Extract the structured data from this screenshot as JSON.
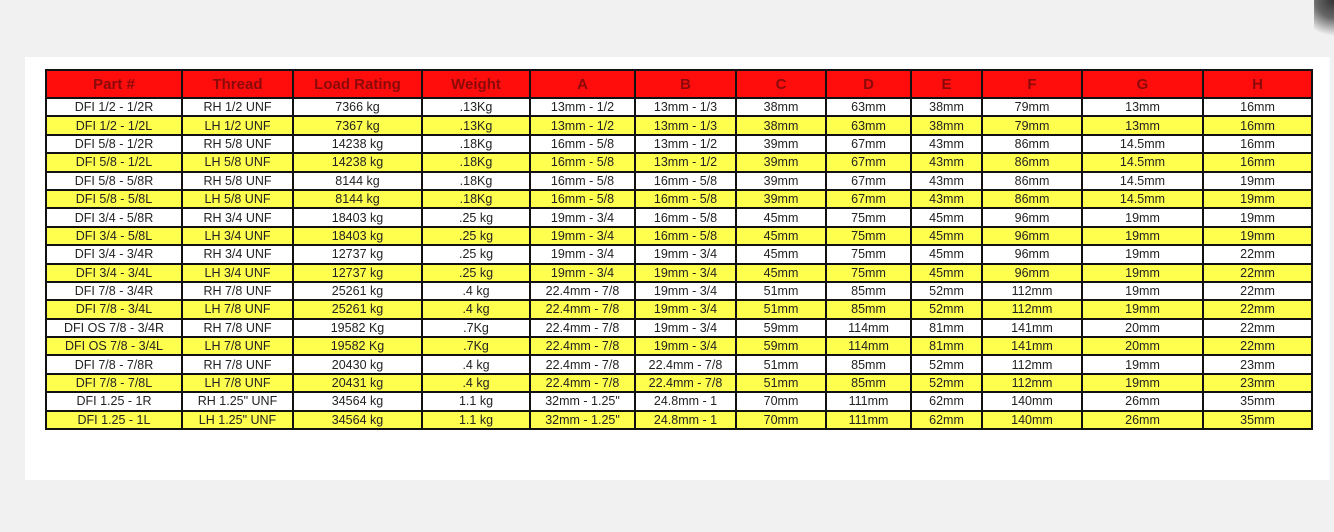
{
  "colors": {
    "header_bg": "#ff0d0d",
    "header_text": "#8a0a0a",
    "alt_row": "#ffff4d",
    "row": "#ffffff"
  },
  "table": {
    "headers": [
      "Part #",
      "Thread",
      "Load Rating",
      "Weight",
      "A",
      "B",
      "C",
      "D",
      "E",
      "F",
      "G",
      "H"
    ],
    "rows": [
      [
        "DFI 1/2 - 1/2R",
        "RH 1/2 UNF",
        "7366 kg",
        ".13Kg",
        "13mm - 1/2",
        "13mm - 1/3",
        "38mm",
        "63mm",
        "38mm",
        "79mm",
        "13mm",
        "16mm"
      ],
      [
        "DFI 1/2 - 1/2L",
        "LH 1/2 UNF",
        "7367 kg",
        ".13Kg",
        "13mm - 1/2",
        "13mm - 1/3",
        "38mm",
        "63mm",
        "38mm",
        "79mm",
        "13mm",
        "16mm"
      ],
      [
        "DFI 5/8 - 1/2R",
        "RH 5/8 UNF",
        "14238 kg",
        ".18Kg",
        "16mm - 5/8",
        "13mm - 1/2",
        "39mm",
        "67mm",
        "43mm",
        "86mm",
        "14.5mm",
        "16mm"
      ],
      [
        "DFI 5/8 - 1/2L",
        "LH 5/8 UNF",
        "14238 kg",
        ".18Kg",
        "16mm - 5/8",
        "13mm - 1/2",
        "39mm",
        "67mm",
        "43mm",
        "86mm",
        "14.5mm",
        "16mm"
      ],
      [
        "DFI 5/8 - 5/8R",
        "RH 5/8 UNF",
        "8144 kg",
        ".18Kg",
        "16mm - 5/8",
        "16mm - 5/8",
        "39mm",
        "67mm",
        "43mm",
        "86mm",
        "14.5mm",
        "19mm"
      ],
      [
        "DFI 5/8 - 5/8L",
        "LH 5/8 UNF",
        "8144 kg",
        ".18Kg",
        "16mm - 5/8",
        "16mm - 5/8",
        "39mm",
        "67mm",
        "43mm",
        "86mm",
        "14.5mm",
        "19mm"
      ],
      [
        "DFI 3/4 - 5/8R",
        "RH 3/4 UNF",
        "18403 kg",
        ".25 kg",
        "19mm - 3/4",
        "16mm - 5/8",
        "45mm",
        "75mm",
        "45mm",
        "96mm",
        "19mm",
        "19mm"
      ],
      [
        "DFI 3/4 - 5/8L",
        "LH 3/4 UNF",
        "18403 kg",
        ".25 kg",
        "19mm - 3/4",
        "16mm - 5/8",
        "45mm",
        "75mm",
        "45mm",
        "96mm",
        "19mm",
        "19mm"
      ],
      [
        "DFI 3/4 - 3/4R",
        "RH 3/4 UNF",
        "12737 kg",
        ".25 kg",
        "19mm - 3/4",
        "19mm - 3/4",
        "45mm",
        "75mm",
        "45mm",
        "96mm",
        "19mm",
        "22mm"
      ],
      [
        "DFI 3/4 - 3/4L",
        "LH 3/4 UNF",
        "12737 kg",
        ".25 kg",
        "19mm - 3/4",
        "19mm - 3/4",
        "45mm",
        "75mm",
        "45mm",
        "96mm",
        "19mm",
        "22mm"
      ],
      [
        "DFI 7/8 - 3/4R",
        "RH 7/8 UNF",
        "25261 kg",
        ".4 kg",
        "22.4mm - 7/8",
        "19mm - 3/4",
        "51mm",
        "85mm",
        "52mm",
        "112mm",
        "19mm",
        "22mm"
      ],
      [
        "DFI 7/8 - 3/4L",
        "LH 7/8 UNF",
        "25261 kg",
        ".4 kg",
        "22.4mm - 7/8",
        "19mm - 3/4",
        "51mm",
        "85mm",
        "52mm",
        "112mm",
        "19mm",
        "22mm"
      ],
      [
        "DFI OS 7/8 - 3/4R",
        "RH 7/8 UNF",
        "19582 Kg",
        ".7Kg",
        "22.4mm - 7/8",
        "19mm - 3/4",
        "59mm",
        "114mm",
        "81mm",
        "141mm",
        "20mm",
        "22mm"
      ],
      [
        "DFI OS 7/8 - 3/4L",
        "LH 7/8 UNF",
        "19582 Kg",
        ".7Kg",
        "22.4mm - 7/8",
        "19mm - 3/4",
        "59mm",
        "114mm",
        "81mm",
        "141mm",
        "20mm",
        "22mm"
      ],
      [
        "DFI 7/8 - 7/8R",
        "RH 7/8 UNF",
        "20430 kg",
        ".4 kg",
        "22.4mm - 7/8",
        "22.4mm - 7/8",
        "51mm",
        "85mm",
        "52mm",
        "112mm",
        "19mm",
        "23mm"
      ],
      [
        "DFI 7/8 - 7/8L",
        "LH 7/8 UNF",
        "20431 kg",
        ".4 kg",
        "22.4mm - 7/8",
        "22.4mm - 7/8",
        "51mm",
        "85mm",
        "52mm",
        "112mm",
        "19mm",
        "23mm"
      ],
      [
        "DFI 1.25 - 1R",
        "RH 1.25\" UNF",
        "34564 kg",
        "1.1 kg",
        "32mm - 1.25\"",
        "24.8mm - 1",
        "70mm",
        "111mm",
        "62mm",
        "140mm",
        "26mm",
        "35mm"
      ],
      [
        "DFI 1.25 - 1L",
        "LH 1.25\" UNF",
        "34564 kg",
        "1.1 kg",
        "32mm - 1.25\"",
        "24.8mm - 1",
        "70mm",
        "111mm",
        "62mm",
        "140mm",
        "26mm",
        "35mm"
      ]
    ]
  }
}
